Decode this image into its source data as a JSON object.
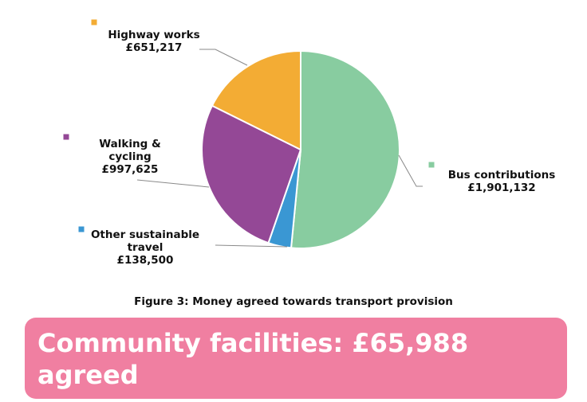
{
  "chart_data": {
    "type": "pie",
    "slices": [
      {
        "label": "Bus contributions",
        "value": 1901132,
        "value_label": "£1,901,132",
        "color": "#88cca0"
      },
      {
        "label": "Other sustainable travel",
        "value": 138500,
        "value_label": "£138,500",
        "color": "#3a97d3"
      },
      {
        "label": "Walking & cycling",
        "value": 997625,
        "value_label": "£997,625",
        "color": "#944896"
      },
      {
        "label": "Highway works",
        "value": 651217,
        "value_label": "£651,217",
        "color": "#f3ac34"
      }
    ],
    "label_lines": [
      [
        "Bus contributions",
        "£1,901,132"
      ],
      [
        "Other sustainable",
        "travel",
        "£138,500"
      ],
      [
        "Walking &",
        "cycling",
        "£997,625"
      ],
      [
        "Highway works",
        "£651,217"
      ]
    ]
  },
  "caption": "Figure 3: Money agreed towards transport provision",
  "banner": {
    "text": "Community facilities: £65,988 agreed",
    "color": "#f07fa1"
  }
}
